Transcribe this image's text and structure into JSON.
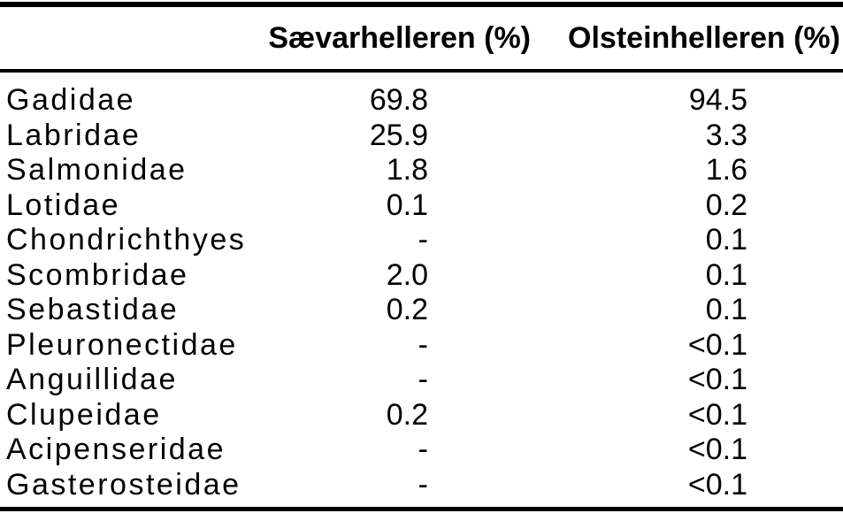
{
  "colors": {
    "background": "#ffffff",
    "text": "#000000",
    "rule": "#000000"
  },
  "table": {
    "header": {
      "family": "",
      "saevarhelleren": "Sævarhelleren (%)",
      "olsteinhelleren": "Olsteinhelleren (%)"
    },
    "rows": [
      {
        "family": "Gadidae",
        "saevarhelleren": "69.8",
        "olsteinhelleren": "94.5"
      },
      {
        "family": "Labridae",
        "saevarhelleren": "25.9",
        "olsteinhelleren": "3.3"
      },
      {
        "family": "Salmonidae",
        "saevarhelleren": "1.8",
        "olsteinhelleren": "1.6"
      },
      {
        "family": "Lotidae",
        "saevarhelleren": "0.1",
        "olsteinhelleren": "0.2"
      },
      {
        "family": "Chondrichthyes",
        "saevarhelleren": "-",
        "olsteinhelleren": "0.1"
      },
      {
        "family": "Scombridae",
        "saevarhelleren": "2.0",
        "olsteinhelleren": "0.1"
      },
      {
        "family": "Sebastidae",
        "saevarhelleren": "0.2",
        "olsteinhelleren": "0.1"
      },
      {
        "family": "Pleuronectidae",
        "saevarhelleren": "-",
        "olsteinhelleren": "<0.1"
      },
      {
        "family": "Anguillidae",
        "saevarhelleren": "-",
        "olsteinhelleren": "<0.1"
      },
      {
        "family": "Clupeidae",
        "saevarhelleren": "0.2",
        "olsteinhelleren": "<0.1"
      },
      {
        "family": "Acipenseridae",
        "saevarhelleren": "-",
        "olsteinhelleren": "<0.1"
      },
      {
        "family": "Gasterosteidae",
        "saevarhelleren": "-",
        "olsteinhelleren": "<0.1"
      }
    ]
  },
  "chart_data": {
    "type": "table",
    "title": "",
    "categories": [
      "Gadidae",
      "Labridae",
      "Salmonidae",
      "Lotidae",
      "Chondrichthyes",
      "Scombridae",
      "Sebastidae",
      "Pleuronectidae",
      "Anguillidae",
      "Clupeidae",
      "Acipenseridae",
      "Gasterosteidae"
    ],
    "series": [
      {
        "name": "Sævarhelleren (%)",
        "values": [
          "69.8",
          "25.9",
          "1.8",
          "0.1",
          "-",
          "2.0",
          "0.2",
          "-",
          "-",
          "0.2",
          "-",
          "-"
        ]
      },
      {
        "name": "Olsteinhelleren (%)",
        "values": [
          "94.5",
          "3.3",
          "1.6",
          "0.2",
          "0.1",
          "0.1",
          "0.1",
          "<0.1",
          "<0.1",
          "<0.1",
          "<0.1",
          "<0.1"
        ]
      }
    ]
  }
}
